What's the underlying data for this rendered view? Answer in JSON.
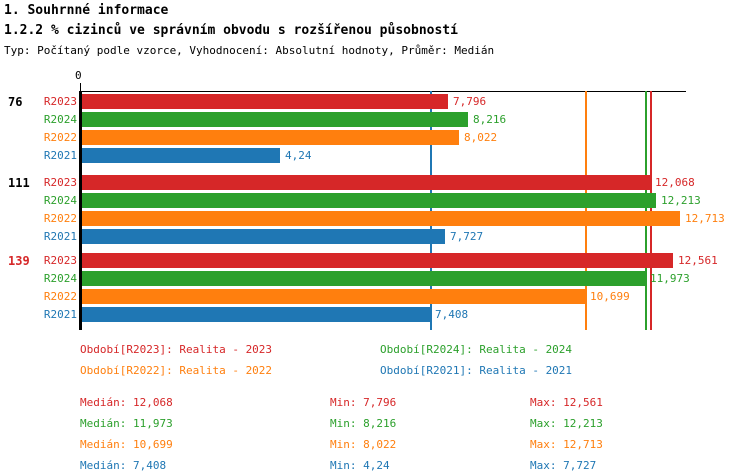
{
  "header": {
    "line1": "1. Souhrnné informace",
    "line2": "1.2.2 % cizinců ve správním obvodu s rozšířenou působností",
    "line3": "Typ: Počítaný podle vzorce, Vyhodnocení: Absolutní hodnoty, Průměr: Medián"
  },
  "colors": {
    "R2023": "#d62728",
    "R2024": "#2ca02c",
    "R2022": "#ff7f0e",
    "R2021": "#1f77b4",
    "axis": "#000000"
  },
  "chart_data": {
    "type": "bar",
    "orientation": "horizontal",
    "title": "1.2.2 % cizinců ve správním obvodu s rozšířenou působností",
    "axis_zero_label": "0",
    "xlim": [
      0,
      12.84
    ],
    "grid": false,
    "series_order": [
      "R2023",
      "R2024",
      "R2022",
      "R2021"
    ],
    "groups": [
      {
        "label": "76",
        "label_color": "#000000",
        "bars": [
          {
            "series": "R2023",
            "value": 7.796,
            "display": "7,796"
          },
          {
            "series": "R2024",
            "value": 8.216,
            "display": "8,216"
          },
          {
            "series": "R2022",
            "value": 8.022,
            "display": "8,022"
          },
          {
            "series": "R2021",
            "value": 4.24,
            "display": "4,24"
          }
        ]
      },
      {
        "label": "111",
        "label_color": "#000000",
        "bars": [
          {
            "series": "R2023",
            "value": 12.068,
            "display": "12,068"
          },
          {
            "series": "R2024",
            "value": 12.213,
            "display": "12,213"
          },
          {
            "series": "R2022",
            "value": 12.713,
            "display": "12,713"
          },
          {
            "series": "R2021",
            "value": 7.727,
            "display": "7,727"
          }
        ]
      },
      {
        "label": "139",
        "label_color": "#d62728",
        "bars": [
          {
            "series": "R2023",
            "value": 12.561,
            "display": "12,561"
          },
          {
            "series": "R2024",
            "value": 11.973,
            "display": "11,973"
          },
          {
            "series": "R2022",
            "value": 10.699,
            "display": "10,699"
          },
          {
            "series": "R2021",
            "value": 7.408,
            "display": "7,408"
          }
        ]
      }
    ],
    "median_lines": [
      {
        "series": "R2023",
        "value": 12.068
      },
      {
        "series": "R2024",
        "value": 11.973
      },
      {
        "series": "R2022",
        "value": 10.699
      },
      {
        "series": "R2021",
        "value": 7.408
      }
    ]
  },
  "legend": [
    {
      "series": "R2023",
      "text": "Období[R2023]: Realita - 2023"
    },
    {
      "series": "R2024",
      "text": "Období[R2024]: Realita - 2024"
    },
    {
      "series": "R2022",
      "text": "Období[R2022]: Realita - 2022"
    },
    {
      "series": "R2021",
      "text": "Období[R2021]: Realita - 2021"
    }
  ],
  "stats": [
    {
      "series": "R2023",
      "median": 12.068,
      "min": 7.796,
      "max": 12.561,
      "median_label": "Medián: 12,068",
      "min_label": "Min: 7,796",
      "max_label": "Max: 12,561"
    },
    {
      "series": "R2024",
      "median": 11.973,
      "min": 8.216,
      "max": 12.213,
      "median_label": "Medián: 11,973",
      "min_label": "Min: 8,216",
      "max_label": "Max: 12,213"
    },
    {
      "series": "R2022",
      "median": 10.699,
      "min": 8.022,
      "max": 12.713,
      "median_label": "Medián: 10,699",
      "min_label": "Min: 8,022",
      "max_label": "Max: 12,713"
    },
    {
      "series": "R2021",
      "median": 7.408,
      "min": 4.24,
      "max": 7.727,
      "median_label": "Medián: 7,408",
      "min_label": "Min: 4,24",
      "max_label": "Max: 7,727"
    }
  ]
}
